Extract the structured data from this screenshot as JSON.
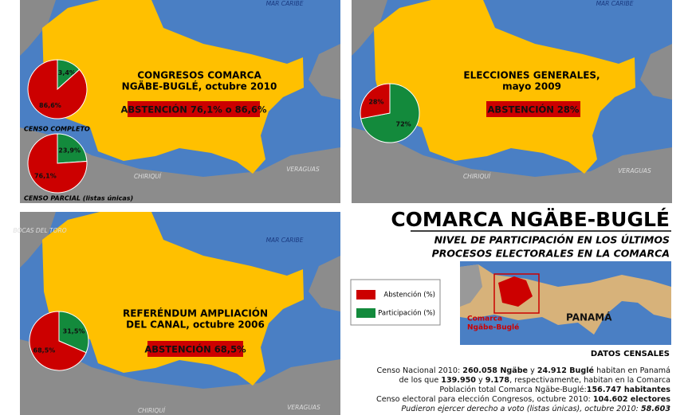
{
  "panels": [
    {
      "title_lines": [
        "CONGRESOS COMARCA",
        "NGÄBE-BUGLÉ, octubre 2010"
      ],
      "highlight": "ABSTENCIÓN 76,1% o 86,6%",
      "map_labels": [
        "MAR CARIBE",
        "CHIRIQUÍ",
        "VERAGUAS"
      ],
      "pies": [
        {
          "caption": "CENSO COMPLETO",
          "values": [
            86.6,
            13.4
          ],
          "value_labels": [
            "86,6%",
            "13,4%"
          ]
        },
        {
          "caption": "CENSO PARCIAL (listas únicas)",
          "values": [
            76.1,
            23.9
          ],
          "value_labels": [
            "76,1%",
            "23,9%"
          ]
        }
      ]
    },
    {
      "title_lines": [
        "ELECCIONES GENERALES,",
        "mayo 2009"
      ],
      "highlight": "ABSTENCIÓN 28%",
      "map_labels": [
        "MAR CARIBE",
        "CHIRIQUÍ",
        "VERAGUAS"
      ],
      "pies": [
        {
          "values": [
            28,
            72
          ],
          "value_labels": [
            "28%",
            "72%"
          ]
        }
      ]
    },
    {
      "title_lines": [
        "REFERÉNDUM AMPLIACIÓN",
        "DEL CANAL, octubre 2006"
      ],
      "highlight": "ABSTENCIÓN 68,5%",
      "map_labels": [
        "MAR CARIBE",
        "CHIRIQUÍ",
        "VERAGUAS",
        "BOCAS DEL TORO"
      ],
      "pies": [
        {
          "values": [
            68.5,
            31.5
          ],
          "value_labels": [
            "68,5%",
            "31,5%"
          ]
        }
      ]
    }
  ],
  "legend": [
    {
      "name": "Abstención (%)",
      "color": "#cc0000"
    },
    {
      "name": "Participación (%)",
      "color": "#138a3c"
    }
  ],
  "title": "COMARCA NGÄBE-BUGLÉ",
  "subtitle_lines": [
    "NIVEL DE PARTICIPACIÓN EN LOS ÚLTIMOS",
    "PROCESOS ELECTORALES EN LA COMARCA"
  ],
  "inset": {
    "comarca_lines": [
      "Comarca",
      "Ngäbe-Buglé"
    ],
    "country": "PANAMÁ"
  },
  "census": {
    "heading": "DATOS CENSALES",
    "lines": [
      [
        "Censo Nacional 2010: ",
        "260.058 Ngäbe",
        " y ",
        "24.912 Buglé",
        " habitan en Panamá"
      ],
      [
        "de los que ",
        "139.950",
        " y ",
        "9.178",
        ", respectivamente, habitan en la Comarca"
      ],
      [
        "Población total Comarca Ngäbe-Buglé:",
        "156.747 habitantes"
      ],
      [
        "Censo electoral para elección Congresos, octubre 2010: ",
        "104.602 electores"
      ],
      [
        "Pudieron ejercer derecho a voto (listas únicas), octubre 2010: ",
        "58.603"
      ]
    ]
  }
}
